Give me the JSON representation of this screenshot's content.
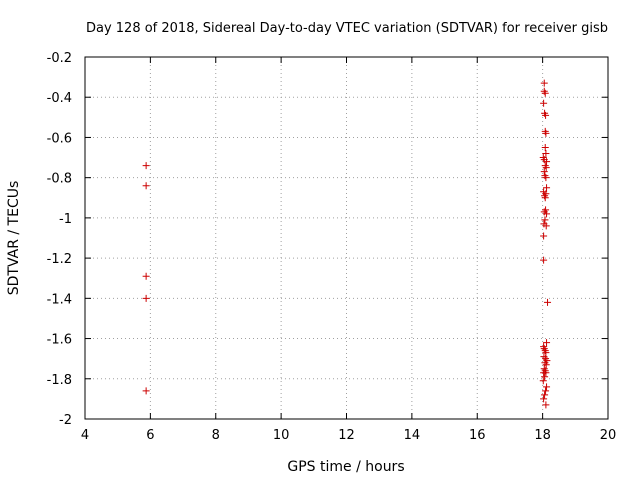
{
  "chart_data": {
    "type": "scatter",
    "title": "Day 128 of 2018, Sidereal Day-to-day VTEC variation (SDTVAR) for receiver gisb",
    "xlabel": "GPS time / hours",
    "ylabel": "SDTVAR / TECUs",
    "xlim": [
      4,
      20
    ],
    "ylim": [
      -2,
      -0.2
    ],
    "xticks": [
      "4",
      "6",
      "8",
      "10",
      "12",
      "14",
      "16",
      "18",
      "20"
    ],
    "yticks": [
      "-0.2",
      "-0.4",
      "-0.6",
      "-0.8",
      "-1",
      "-1.2",
      "-1.4",
      "-1.6",
      "-1.8",
      "-2"
    ],
    "grid": true,
    "marker": "+",
    "color": "#cc0000",
    "points": [
      [
        5.87,
        -0.74
      ],
      [
        5.87,
        -0.84
      ],
      [
        5.87,
        -1.29
      ],
      [
        5.87,
        -1.4
      ],
      [
        5.87,
        -1.86
      ],
      [
        18.05,
        -0.33
      ],
      [
        18.05,
        -0.37
      ],
      [
        18.08,
        -0.38
      ],
      [
        18.03,
        -0.43
      ],
      [
        18.06,
        -0.48
      ],
      [
        18.09,
        -0.49
      ],
      [
        18.08,
        -0.57
      ],
      [
        18.1,
        -0.58
      ],
      [
        18.08,
        -0.65
      ],
      [
        18.1,
        -0.68
      ],
      [
        18.02,
        -0.7
      ],
      [
        18.05,
        -0.71
      ],
      [
        18.12,
        -0.72
      ],
      [
        18.08,
        -0.74
      ],
      [
        18.11,
        -0.75
      ],
      [
        18.05,
        -0.77
      ],
      [
        18.07,
        -0.79
      ],
      [
        18.1,
        -0.8
      ],
      [
        18.12,
        -0.85
      ],
      [
        18.03,
        -0.87
      ],
      [
        18.1,
        -0.88
      ],
      [
        18.06,
        -0.89
      ],
      [
        18.08,
        -0.9
      ],
      [
        18.09,
        -0.96
      ],
      [
        18.05,
        -0.97
      ],
      [
        18.12,
        -0.98
      ],
      [
        18.07,
        -1.01
      ],
      [
        18.04,
        -1.03
      ],
      [
        18.11,
        -1.04
      ],
      [
        18.03,
        -1.09
      ],
      [
        18.03,
        -1.21
      ],
      [
        18.15,
        -1.42
      ],
      [
        18.12,
        -1.62
      ],
      [
        18.03,
        -1.64
      ],
      [
        18.05,
        -1.65
      ],
      [
        18.08,
        -1.66
      ],
      [
        18.1,
        -1.67
      ],
      [
        18.04,
        -1.69
      ],
      [
        18.09,
        -1.7
      ],
      [
        18.13,
        -1.71
      ],
      [
        18.07,
        -1.72
      ],
      [
        18.11,
        -1.73
      ],
      [
        18.05,
        -1.75
      ],
      [
        18.08,
        -1.76
      ],
      [
        18.03,
        -1.77
      ],
      [
        18.1,
        -1.77
      ],
      [
        18.06,
        -1.79
      ],
      [
        18.02,
        -1.81
      ],
      [
        18.12,
        -1.84
      ],
      [
        18.09,
        -1.86
      ],
      [
        18.06,
        -1.88
      ],
      [
        18.03,
        -1.9
      ],
      [
        18.1,
        -1.93
      ]
    ]
  }
}
